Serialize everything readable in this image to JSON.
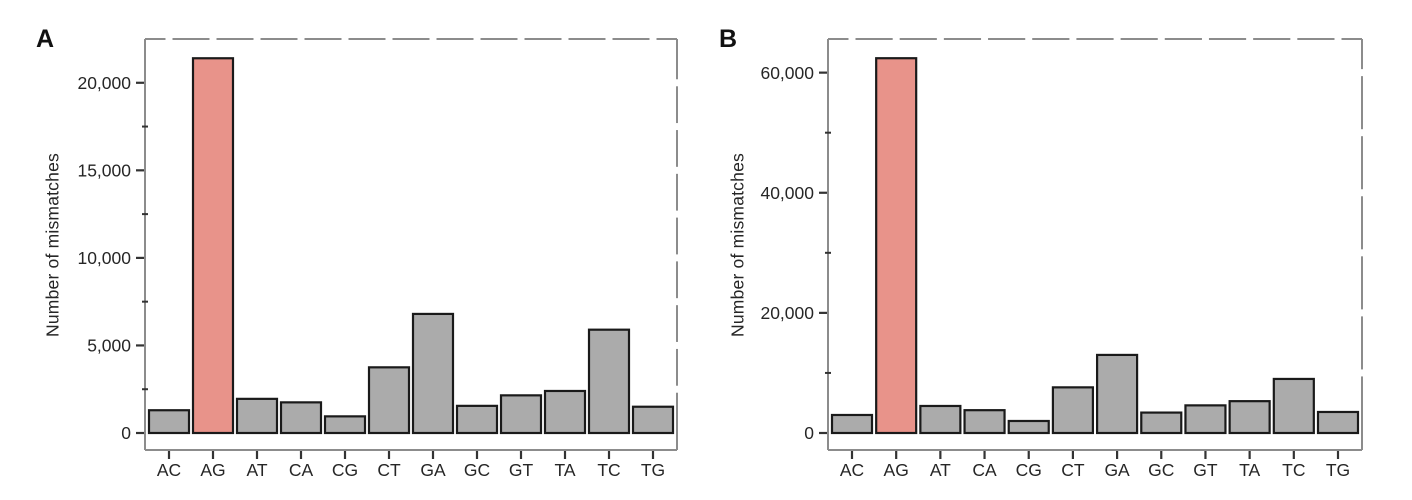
{
  "figure_title": "",
  "colors": {
    "highlight": "#E8938A",
    "bar": "#ABABAB",
    "bar_outline": "#1A1A1A",
    "panel_border": "#8C8C8C",
    "tick": "#333333",
    "text": "#262626",
    "background": "#FFFFFF"
  },
  "chart_data": [
    {
      "type": "bar",
      "panel_label": "A",
      "title": "",
      "xlabel": "",
      "ylabel": "Number of mismatches",
      "categories": [
        "AC",
        "AG",
        "AT",
        "CA",
        "CG",
        "CT",
        "GA",
        "GC",
        "GT",
        "TA",
        "TC",
        "TG"
      ],
      "values": [
        1300,
        21400,
        1950,
        1750,
        950,
        3750,
        6800,
        1550,
        2150,
        2400,
        5900,
        1500
      ],
      "highlight_category": "AG",
      "ylim": [
        0,
        22500
      ],
      "ytick_values": [
        0,
        5000,
        10000,
        15000,
        20000
      ],
      "ytick_labels": [
        "0",
        "5,000",
        "10,000",
        "15,000",
        "20,000"
      ],
      "y_minor_step": 2500,
      "grid": false,
      "legend": "none"
    },
    {
      "type": "bar",
      "panel_label": "B",
      "title": "",
      "xlabel": "",
      "ylabel": "Number of mismatches",
      "categories": [
        "AC",
        "AG",
        "AT",
        "CA",
        "CG",
        "CT",
        "GA",
        "GC",
        "GT",
        "TA",
        "TC",
        "TG"
      ],
      "values": [
        3000,
        62400,
        4500,
        3800,
        2000,
        7600,
        13000,
        3400,
        4600,
        5300,
        9000,
        3500
      ],
      "highlight_category": "AG",
      "ylim": [
        0,
        65600
      ],
      "ytick_values": [
        0,
        20000,
        40000,
        60000
      ],
      "ytick_labels": [
        "0",
        "20,000",
        "40,000",
        "60,000"
      ],
      "y_minor_step": 10000,
      "grid": false,
      "legend": "none"
    }
  ]
}
